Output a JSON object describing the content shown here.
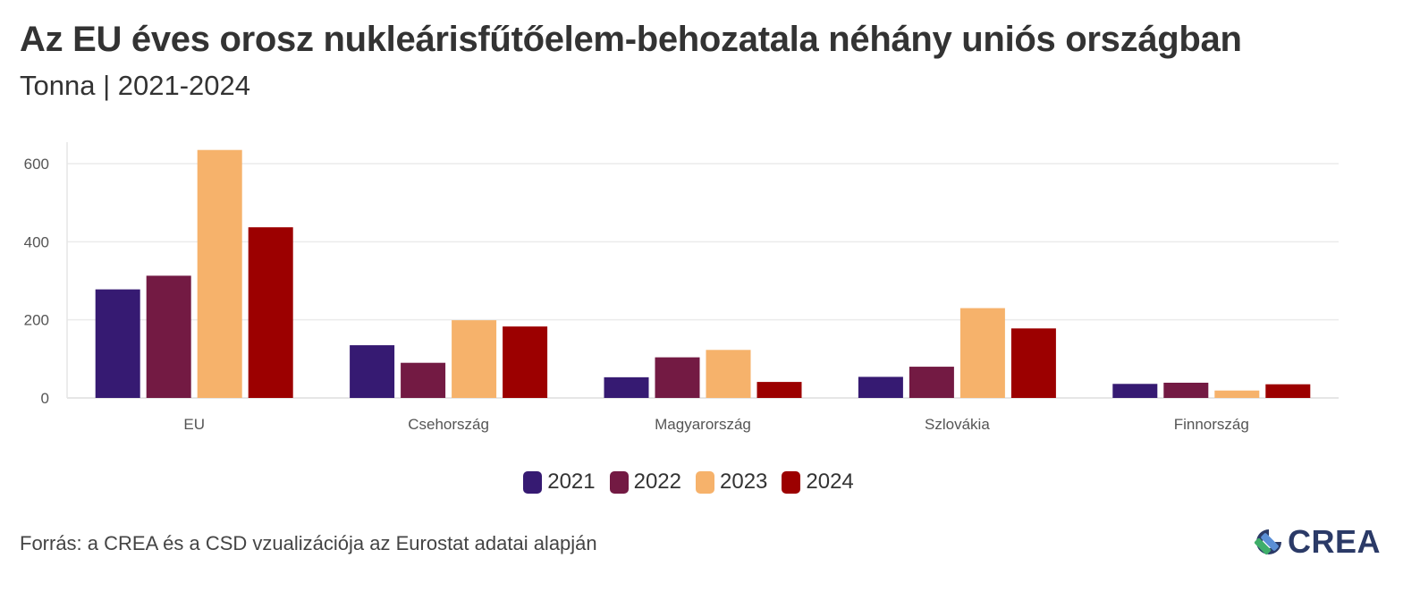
{
  "header": {
    "title": "Az EU éves orosz nukleárisfűtőelem-behozatala néhány uniós országban",
    "subtitle": "Tonna | 2021-2024"
  },
  "footer": {
    "source": "Forrás: a CREA és a CSD vzualizációja az Eurostat adatai alapján",
    "logo_text": "CREA"
  },
  "colors": {
    "2021": "#361a72",
    "2022": "#731a43",
    "2023": "#f6b26b",
    "2024": "#9c0000"
  },
  "chart_data": {
    "type": "bar",
    "title": "Az EU éves orosz nukleárisfűtőelem-behozatala néhány uniós országban",
    "subtitle": "Tonna | 2021-2024",
    "categories": [
      "EU",
      "Csehország",
      "Magyarország",
      "Szlovákia",
      "Finnország"
    ],
    "series": [
      {
        "name": "2021",
        "values": [
          278,
          135,
          53,
          54,
          36
        ]
      },
      {
        "name": "2022",
        "values": [
          313,
          90,
          104,
          80,
          39
        ]
      },
      {
        "name": "2023",
        "values": [
          635,
          199,
          123,
          230,
          19
        ]
      },
      {
        "name": "2024",
        "values": [
          437,
          183,
          41,
          178,
          35
        ]
      }
    ],
    "ylim": [
      0,
      655
    ],
    "yticks": [
      0,
      200,
      400,
      600
    ],
    "grid": true,
    "legend": "bottom-center"
  }
}
